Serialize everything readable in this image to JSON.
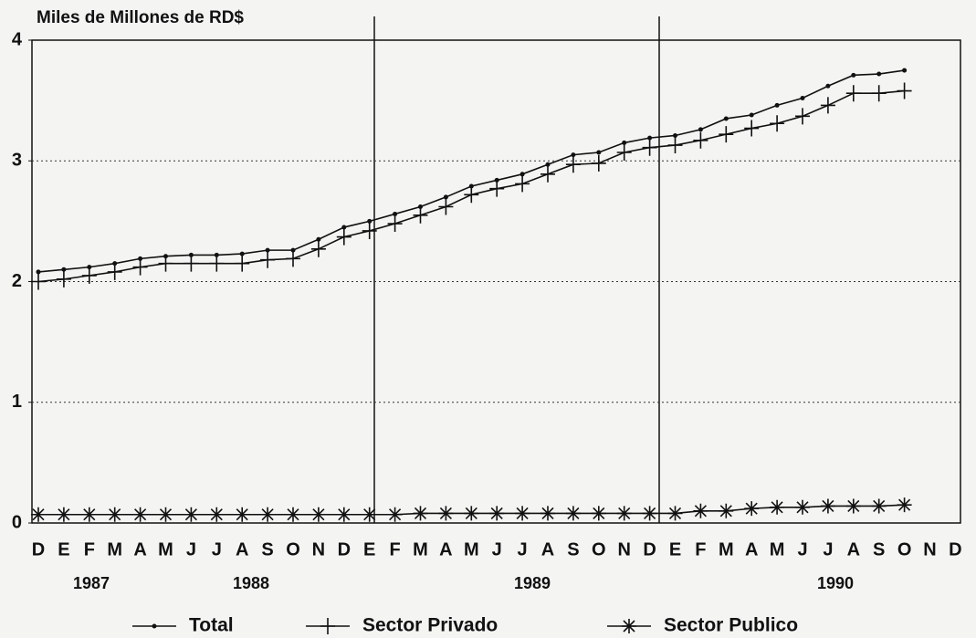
{
  "chart_data": {
    "type": "line",
    "title": "Miles de Millones de RD$",
    "categories": [
      "D",
      "E",
      "F",
      "M",
      "A",
      "M",
      "J",
      "J",
      "A",
      "S",
      "O",
      "N",
      "D",
      "E",
      "F",
      "M",
      "A",
      "M",
      "J",
      "J",
      "A",
      "S",
      "O",
      "N",
      "D",
      "E",
      "F",
      "M",
      "A",
      "M",
      "J",
      "J",
      "A",
      "S",
      "O",
      "N",
      "D"
    ],
    "years": [
      "1987",
      "1988",
      "1989",
      "1990"
    ],
    "ylim": [
      0,
      4
    ],
    "yticks": [
      0,
      1,
      2,
      3,
      4
    ],
    "grid": true,
    "series": [
      {
        "name": "Total",
        "color": "#111111",
        "marker": "dot",
        "values": [
          2.08,
          2.1,
          2.12,
          2.15,
          2.19,
          2.21,
          2.22,
          2.22,
          2.23,
          2.26,
          2.26,
          2.35,
          2.45,
          2.5,
          2.56,
          2.62,
          2.7,
          2.79,
          2.84,
          2.89,
          2.97,
          3.05,
          3.07,
          3.15,
          3.19,
          3.21,
          3.26,
          3.35,
          3.38,
          3.46,
          3.52,
          3.62,
          3.71,
          3.72,
          3.75,
          null,
          null
        ]
      },
      {
        "name": "Sector Privado",
        "color": "#111111",
        "marker": "plus",
        "values": [
          2.0,
          2.02,
          2.05,
          2.08,
          2.12,
          2.15,
          2.15,
          2.15,
          2.15,
          2.18,
          2.19,
          2.27,
          2.37,
          2.42,
          2.48,
          2.55,
          2.62,
          2.72,
          2.77,
          2.81,
          2.89,
          2.97,
          2.98,
          3.07,
          3.11,
          3.13,
          3.17,
          3.22,
          3.27,
          3.31,
          3.37,
          3.46,
          3.56,
          3.56,
          3.58,
          null,
          null
        ]
      },
      {
        "name": "Sector Publico",
        "color": "#111111",
        "marker": "star",
        "values": [
          0.07,
          0.07,
          0.07,
          0.07,
          0.07,
          0.07,
          0.07,
          0.07,
          0.07,
          0.07,
          0.07,
          0.07,
          0.07,
          0.07,
          0.07,
          0.08,
          0.08,
          0.08,
          0.08,
          0.08,
          0.08,
          0.08,
          0.08,
          0.08,
          0.08,
          0.08,
          0.1,
          0.1,
          0.12,
          0.13,
          0.13,
          0.14,
          0.14,
          0.14,
          0.15,
          null,
          null
        ]
      }
    ]
  }
}
